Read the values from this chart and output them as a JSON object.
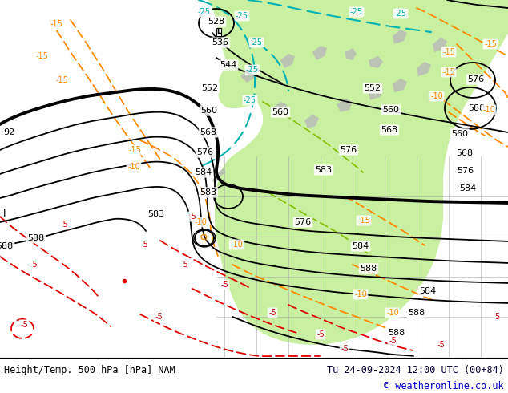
{
  "title_left": "Height/Temp. 500 hPa [hPa] NAM",
  "title_right": "Tu 24-09-2024 12:00 UTC (00+84)",
  "copyright": "© weatheronline.co.uk",
  "bg_gray": "#e0e0e0",
  "bg_green": "#c8f0a0",
  "bg_gray2": "#c8c8c8",
  "footer_bg": "#ffffff",
  "text_color": "#000000",
  "text_color_right": "#000033",
  "copyright_color": "#0000cc",
  "black_contour_lw": 1.3,
  "thick_contour_lw": 2.8,
  "orange_lw": 1.3,
  "teal_lw": 1.5,
  "red_lw": 1.3,
  "figsize": [
    6.34,
    4.9
  ],
  "dpi": 100
}
